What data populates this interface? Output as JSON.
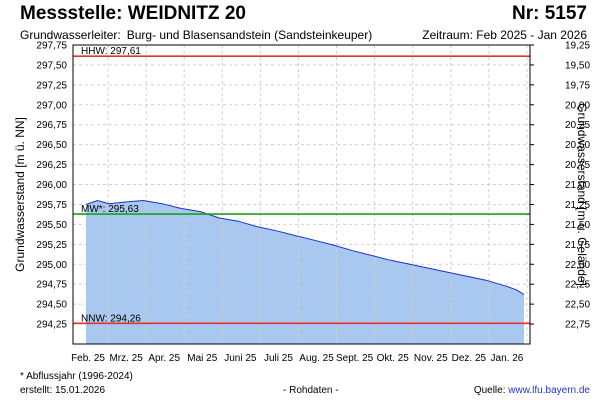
{
  "header": {
    "title": "Messstelle: WEIDNITZ 20",
    "number": "Nr: 5157",
    "aquifer_label": "Grundwasserleiter:",
    "aquifer_value": "Burg- und Blasensandstein (Sandsteinkeuper)",
    "period": "Zeitraum: Feb 2025 - Jan 2026"
  },
  "footer": {
    "note": "* Abflussjahr (1996-2024)",
    "created": "erstellt:  15.01.2026",
    "raw": "- Rohdaten -",
    "source_label": "Quelle:",
    "source_link": "www.lfu.bayern.de"
  },
  "colors": {
    "fill": "#a9c8ef",
    "line": "#1c2fd0",
    "hhw": "#e53030",
    "nnw": "#e53030",
    "mw": "#1aa21a",
    "grid": "#d0d0d0"
  },
  "chart_data": {
    "type": "area",
    "ylabel_left": "Grundwasserstand [m ü. NN]",
    "ylabel_right": "Grundwasserstand [m u. Gelände]",
    "ylim": [
      294.0,
      297.75
    ],
    "y_ticks": [
      "294,25",
      "294,50",
      "294,75",
      "295,00",
      "295,25",
      "295,50",
      "295,75",
      "296,00",
      "296,25",
      "296,50",
      "296,75",
      "297,00",
      "297,25",
      "297,50",
      "297,75"
    ],
    "y_ticks_right": [
      "22,75",
      "22,50",
      "22,25",
      "22,00",
      "21,75",
      "21,50",
      "21,25",
      "21,00",
      "20,75",
      "20,50",
      "20,25",
      "20,00",
      "19,75",
      "19,50",
      "19,25"
    ],
    "x_ticks": [
      "Feb. 25",
      "Mrz. 25",
      "Apr. 25",
      "Mai 25",
      "Juni 25",
      "Juli 25",
      "Aug. 25",
      "Sept. 25",
      "Okt. 25",
      "Nov. 25",
      "Dez. 25",
      "Jan. 26"
    ],
    "reference_lines": [
      {
        "label": "HHW: 297,61",
        "value": 297.61,
        "kind": "hhw"
      },
      {
        "label": "MW*: 295,63",
        "value": 295.63,
        "kind": "mw"
      },
      {
        "label": "NNW: 294,26",
        "value": 294.26,
        "kind": "nnw"
      }
    ],
    "series": [
      {
        "values": [
          [
            0,
            295.75
          ],
          [
            0.3,
            295.8
          ],
          [
            0.6,
            295.76
          ],
          [
            1.0,
            295.78
          ],
          [
            1.5,
            295.8
          ],
          [
            2.0,
            295.76
          ],
          [
            2.5,
            295.7
          ],
          [
            3.0,
            295.66
          ],
          [
            3.5,
            295.58
          ],
          [
            4.0,
            295.54
          ],
          [
            4.5,
            295.47
          ],
          [
            5.0,
            295.42
          ],
          [
            5.5,
            295.36
          ],
          [
            6.0,
            295.3
          ],
          [
            6.5,
            295.24
          ],
          [
            7.0,
            295.17
          ],
          [
            7.5,
            295.11
          ],
          [
            8.0,
            295.05
          ],
          [
            8.5,
            295.0
          ],
          [
            9.0,
            294.95
          ],
          [
            9.5,
            294.9
          ],
          [
            10.0,
            294.85
          ],
          [
            10.5,
            294.8
          ],
          [
            11.0,
            294.73
          ],
          [
            11.3,
            294.68
          ],
          [
            11.5,
            294.62
          ]
        ]
      }
    ]
  }
}
